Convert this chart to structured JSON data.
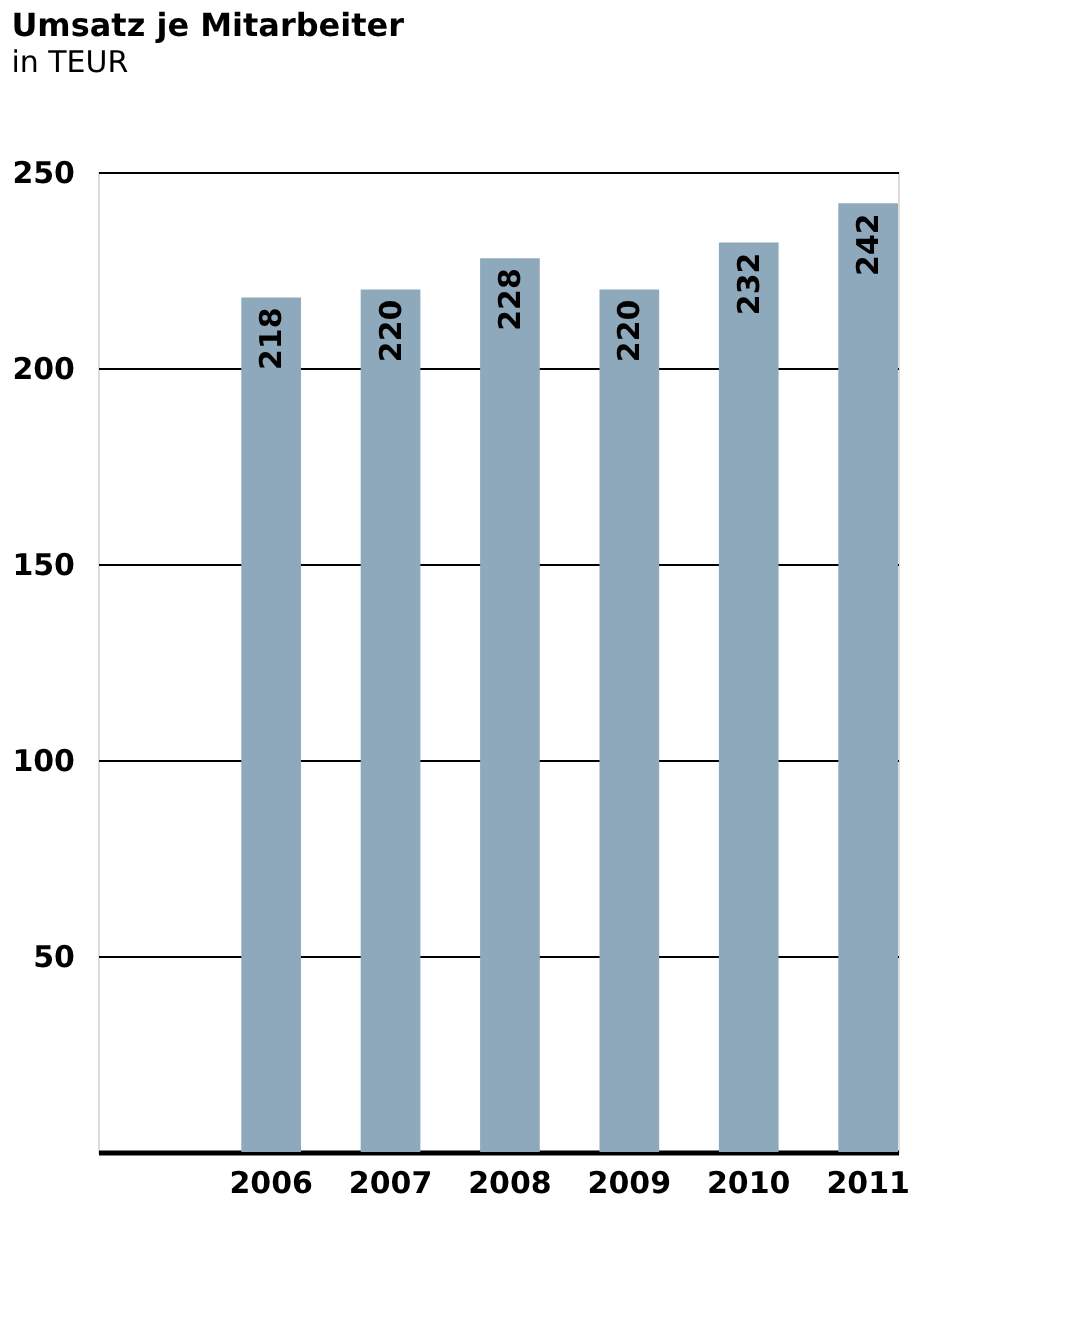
{
  "chart_data": {
    "type": "bar",
    "title": "Umsatz je Mitarbeiter",
    "subtitle": "in TEUR",
    "categories": [
      "2006",
      "2007",
      "2008",
      "2009",
      "2010",
      "2011"
    ],
    "values": [
      218,
      220,
      228,
      220,
      232,
      242
    ],
    "color": "#8fa9bc",
    "ylim": [
      0,
      250
    ],
    "yticks": [
      50,
      100,
      150,
      200,
      250
    ],
    "grid": "y",
    "data_labels": true
  }
}
